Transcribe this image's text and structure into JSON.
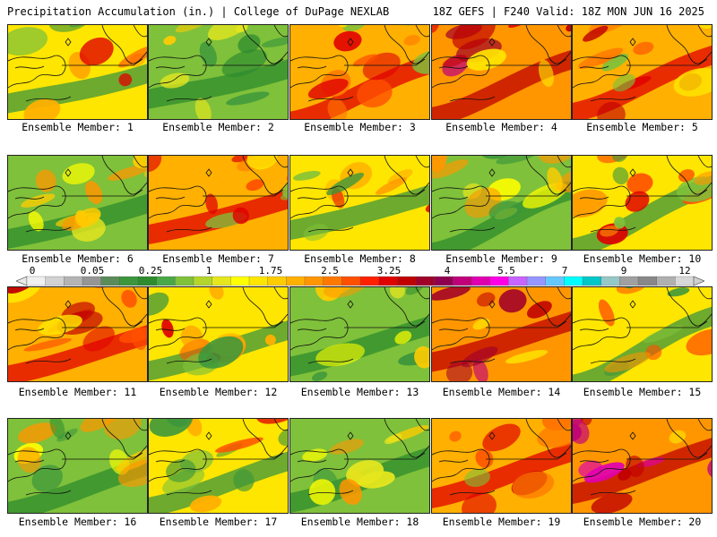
{
  "header": {
    "title": "Precipitation Accumulation (in.) | College of DuPage NEXLAB",
    "valid": "18Z GEFS | F240 Valid: 18Z MON JUN 16 2025"
  },
  "members": [
    {
      "label": "Ensemble Member: 1",
      "tone": "mixed"
    },
    {
      "label": "Ensemble Member: 2",
      "tone": "green"
    },
    {
      "label": "Ensemble Member: 3",
      "tone": "red"
    },
    {
      "label": "Ensemble Member: 4",
      "tone": "magenta"
    },
    {
      "label": "Ensemble Member: 5",
      "tone": "red"
    },
    {
      "label": "Ensemble Member: 6",
      "tone": "green"
    },
    {
      "label": "Ensemble Member: 7",
      "tone": "red"
    },
    {
      "label": "Ensemble Member: 8",
      "tone": "mixed"
    },
    {
      "label": "Ensemble Member: 9",
      "tone": "green"
    },
    {
      "label": "Ensemble Member: 10",
      "tone": "mixed"
    },
    {
      "label": "Ensemble Member: 11",
      "tone": "red"
    },
    {
      "label": "Ensemble Member: 12",
      "tone": "mixed"
    },
    {
      "label": "Ensemble Member: 13",
      "tone": "green"
    },
    {
      "label": "Ensemble Member: 14",
      "tone": "magenta"
    },
    {
      "label": "Ensemble Member: 15",
      "tone": "mixed"
    },
    {
      "label": "Ensemble Member: 16",
      "tone": "green"
    },
    {
      "label": "Ensemble Member: 17",
      "tone": "mixed"
    },
    {
      "label": "Ensemble Member: 18",
      "tone": "green"
    },
    {
      "label": "Ensemble Member: 19",
      "tone": "red"
    },
    {
      "label": "Ensemble Member: 20",
      "tone": "magenta"
    }
  ],
  "legend": {
    "labels": [
      "0",
      "0.05",
      "0.25",
      "1",
      "1.75",
      "2.5",
      "3.25",
      "4",
      "5.5",
      "7",
      "9",
      "12"
    ],
    "colors": [
      "#f0f0f0",
      "#d2d2d2",
      "#b4b4b4",
      "#969696",
      "#5a8c5a",
      "#3c963c",
      "#2e8b2e",
      "#48a848",
      "#7fc13a",
      "#b4d62c",
      "#e6e61e",
      "#ffff00",
      "#ffe600",
      "#ffcc00",
      "#ffb000",
      "#ff9600",
      "#ff7800",
      "#ff5000",
      "#ff2000",
      "#e00000",
      "#c00000",
      "#a00028",
      "#900050",
      "#c0007a",
      "#e000b0",
      "#ff00e6",
      "#c864ff",
      "#9696ff",
      "#64c8ff",
      "#00ffff",
      "#00c8c8",
      "#96c8c8",
      "#a0a0a0",
      "#888888",
      "#b0b0b0",
      "#d8d8d8"
    ]
  }
}
